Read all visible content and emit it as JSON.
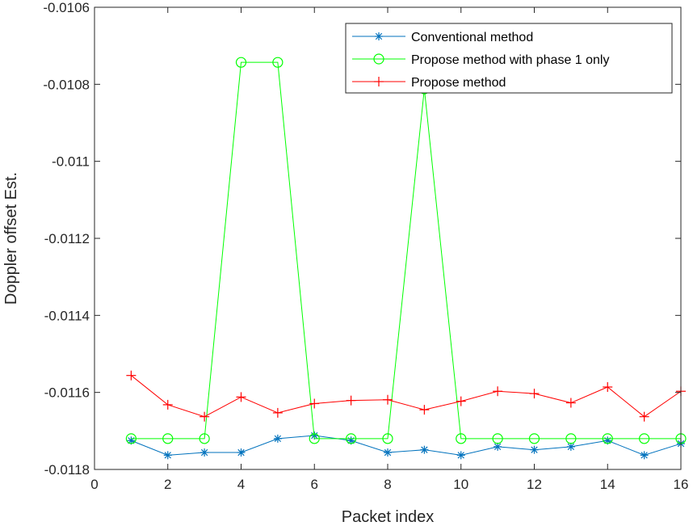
{
  "chart_data": {
    "type": "line",
    "title": "",
    "xlabel": "Packet index",
    "ylabel": "Doppler offset Est.",
    "xlim": [
      0,
      16
    ],
    "ylim": [
      -0.0118,
      -0.0106
    ],
    "xticks": [
      0,
      2,
      4,
      6,
      8,
      10,
      12,
      14,
      16
    ],
    "xtick_labels": [
      "0",
      "2",
      "4",
      "6",
      "8",
      "10",
      "12",
      "14",
      "16"
    ],
    "yticks": [
      -0.0118,
      -0.0116,
      -0.0114,
      -0.0112,
      -0.011,
      -0.0108,
      -0.0106
    ],
    "ytick_labels": [
      "-0.0118",
      "-0.0116",
      "-0.0114",
      "-0.0112",
      "-0.011",
      "-0.0108",
      "-0.0106"
    ],
    "grid": false,
    "legend_position": "top-right",
    "x": [
      1,
      2,
      3,
      4,
      5,
      6,
      7,
      8,
      9,
      10,
      11,
      12,
      13,
      14,
      15,
      16
    ],
    "series": [
      {
        "name": "Conventional method",
        "color": "#0072BD",
        "marker": "asterisk",
        "values": [
          -0.011725,
          -0.011763,
          -0.011756,
          -0.011756,
          -0.01172,
          -0.011712,
          -0.011725,
          -0.011756,
          -0.011749,
          -0.011763,
          -0.011741,
          -0.011749,
          -0.011741,
          -0.011725,
          -0.011763,
          -0.011733
        ]
      },
      {
        "name": "Propose method with phase 1 only",
        "color": "#00FF00",
        "marker": "circle",
        "values": [
          -0.01172,
          -0.01172,
          -0.01172,
          -0.010743,
          -0.010743,
          -0.01172,
          -0.01172,
          -0.01172,
          -0.010812,
          -0.01172,
          -0.01172,
          -0.01172,
          -0.01172,
          -0.01172,
          -0.01172,
          -0.01172
        ]
      },
      {
        "name": "Propose method",
        "color": "#FF0000",
        "marker": "plus",
        "values": [
          -0.011556,
          -0.011632,
          -0.011663,
          -0.011612,
          -0.011653,
          -0.011629,
          -0.011621,
          -0.011619,
          -0.011645,
          -0.011623,
          -0.011597,
          -0.011603,
          -0.011627,
          -0.011586,
          -0.011663,
          -0.011597
        ]
      }
    ]
  }
}
